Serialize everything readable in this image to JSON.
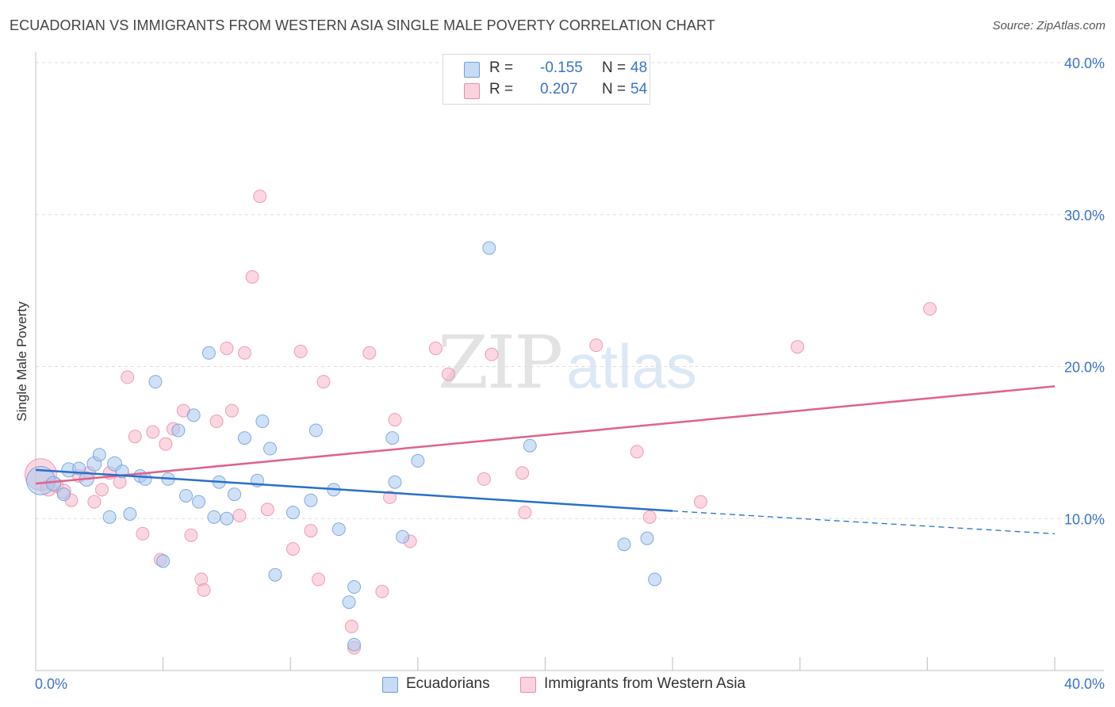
{
  "header": {
    "title": "ECUADORIAN VS IMMIGRANTS FROM WESTERN ASIA SINGLE MALE POVERTY CORRELATION CHART",
    "source": "Source: ZipAtlas.com"
  },
  "watermark": {
    "zip": "ZIP",
    "atlas": "atlas"
  },
  "legend": {
    "rows": [
      {
        "r_label": "R =",
        "r_value": "-0.155",
        "n_label": "N =",
        "n_value": "48",
        "color": "#a9c8f0"
      },
      {
        "r_label": "R =",
        "r_value": "0.207",
        "n_label": "N =",
        "n_value": "54",
        "color": "#f7b6c8"
      }
    ]
  },
  "bottom_legend": {
    "series_a": "Ecuadorians",
    "series_b": "Immigrants from Western Asia"
  },
  "colors": {
    "blue_fill": "#a9c8f0",
    "blue_stroke": "#6e9fd9",
    "blue_line": "#2a6fcc",
    "pink_fill": "#f7b6c8",
    "pink_stroke": "#e98aa6",
    "pink_line": "#e0628a",
    "tick_text": "#3b73c7",
    "grid": "#dddddd"
  },
  "chart_data": {
    "type": "scatter",
    "title": "ECUADORIAN VS IMMIGRANTS FROM WESTERN ASIA SINGLE MALE POVERTY CORRELATION CHART",
    "ylabel": "Single Male Poverty",
    "xlabel": "",
    "xlim": [
      0,
      40
    ],
    "ylim": [
      0,
      40
    ],
    "x_tick_labels": [
      "0.0%",
      "40.0%"
    ],
    "y_ticks": [
      10,
      20,
      30,
      40
    ],
    "y_tick_labels": [
      "10.0%",
      "20.0%",
      "30.0%",
      "40.0%"
    ],
    "grid": true,
    "series": [
      {
        "name": "Ecuadorians",
        "color": "#a9c8f0",
        "r": -0.155,
        "n": 48,
        "trend": {
          "x_start": 0,
          "y_start": 13.2,
          "x_solid_end": 25.0,
          "y_solid_end": 10.5,
          "x_end": 40,
          "y_end": 9.0
        },
        "points": [
          [
            0.2,
            12.5,
            18
          ],
          [
            0.7,
            12.3,
            9
          ],
          [
            1.1,
            11.6,
            8
          ],
          [
            1.3,
            13.2,
            9
          ],
          [
            1.7,
            13.3,
            8
          ],
          [
            2.0,
            12.6,
            9
          ],
          [
            2.3,
            13.6,
            9
          ],
          [
            2.5,
            14.2,
            8
          ],
          [
            2.9,
            10.1,
            8
          ],
          [
            3.1,
            13.6,
            9
          ],
          [
            3.4,
            13.1,
            8
          ],
          [
            3.7,
            10.3,
            8
          ],
          [
            4.1,
            12.8,
            8
          ],
          [
            4.3,
            12.6,
            8
          ],
          [
            4.7,
            19.0,
            8
          ],
          [
            5.0,
            7.2,
            8
          ],
          [
            5.2,
            12.6,
            8
          ],
          [
            5.6,
            15.8,
            8
          ],
          [
            5.9,
            11.5,
            8
          ],
          [
            6.2,
            16.8,
            8
          ],
          [
            6.4,
            11.1,
            8
          ],
          [
            6.8,
            20.9,
            8
          ],
          [
            7.0,
            10.1,
            8
          ],
          [
            7.2,
            12.4,
            8
          ],
          [
            7.5,
            10.0,
            8
          ],
          [
            7.8,
            11.6,
            8
          ],
          [
            8.2,
            15.3,
            8
          ],
          [
            8.7,
            12.5,
            8
          ],
          [
            8.9,
            16.4,
            8
          ],
          [
            9.2,
            14.6,
            8
          ],
          [
            9.4,
            6.3,
            8
          ],
          [
            10.1,
            10.4,
            8
          ],
          [
            10.8,
            11.2,
            8
          ],
          [
            11.0,
            15.8,
            8
          ],
          [
            11.7,
            11.9,
            8
          ],
          [
            11.9,
            9.3,
            8
          ],
          [
            12.3,
            4.5,
            8
          ],
          [
            12.5,
            5.5,
            8
          ],
          [
            12.5,
            1.7,
            8
          ],
          [
            14.0,
            15.3,
            8
          ],
          [
            14.1,
            12.4,
            8
          ],
          [
            14.4,
            8.8,
            8
          ],
          [
            15.0,
            13.8,
            8
          ],
          [
            17.8,
            27.8,
            8
          ],
          [
            19.4,
            14.8,
            8
          ],
          [
            23.1,
            8.3,
            8
          ],
          [
            24.0,
            8.7,
            8
          ],
          [
            24.3,
            6.0,
            8
          ]
        ]
      },
      {
        "name": "Immigrants from Western Asia",
        "color": "#f7b6c8",
        "r": 0.207,
        "n": 54,
        "trend": {
          "x_start": 0,
          "y_start": 12.3,
          "x_end": 40,
          "y_end": 18.7
        },
        "points": [
          [
            0.2,
            12.9,
            20
          ],
          [
            0.5,
            12.0,
            10
          ],
          [
            0.8,
            12.2,
            9
          ],
          [
            1.1,
            11.8,
            9
          ],
          [
            1.4,
            11.2,
            8
          ],
          [
            1.7,
            12.8,
            8
          ],
          [
            2.1,
            13.0,
            8
          ],
          [
            2.3,
            11.1,
            8
          ],
          [
            2.6,
            11.9,
            8
          ],
          [
            2.9,
            13.0,
            8
          ],
          [
            3.3,
            12.4,
            8
          ],
          [
            3.6,
            19.3,
            8
          ],
          [
            3.9,
            15.4,
            8
          ],
          [
            4.2,
            9.0,
            8
          ],
          [
            4.6,
            15.7,
            8
          ],
          [
            4.9,
            7.3,
            8
          ],
          [
            5.1,
            14.9,
            8
          ],
          [
            5.4,
            15.9,
            8
          ],
          [
            5.8,
            17.1,
            8
          ],
          [
            6.1,
            8.9,
            8
          ],
          [
            6.5,
            6.0,
            8
          ],
          [
            6.6,
            5.3,
            8
          ],
          [
            7.1,
            16.4,
            8
          ],
          [
            7.5,
            21.2,
            8
          ],
          [
            7.7,
            17.1,
            8
          ],
          [
            8.0,
            10.2,
            8
          ],
          [
            8.2,
            20.9,
            8
          ],
          [
            8.5,
            25.9,
            8
          ],
          [
            8.8,
            31.2,
            8
          ],
          [
            9.1,
            10.6,
            8
          ],
          [
            10.1,
            8.0,
            8
          ],
          [
            10.4,
            21.0,
            8
          ],
          [
            10.8,
            9.2,
            8
          ],
          [
            11.1,
            6.0,
            8
          ],
          [
            11.3,
            19.0,
            8
          ],
          [
            12.4,
            2.9,
            8
          ],
          [
            12.5,
            1.5,
            8
          ],
          [
            13.1,
            20.9,
            8
          ],
          [
            13.6,
            5.2,
            8
          ],
          [
            13.9,
            11.4,
            8
          ],
          [
            14.1,
            16.5,
            8
          ],
          [
            14.7,
            8.5,
            8
          ],
          [
            15.7,
            21.2,
            8
          ],
          [
            16.2,
            19.5,
            8
          ],
          [
            17.6,
            12.6,
            8
          ],
          [
            17.9,
            20.8,
            8
          ],
          [
            19.1,
            13.0,
            8
          ],
          [
            19.2,
            10.4,
            8
          ],
          [
            22.0,
            21.4,
            8
          ],
          [
            23.6,
            14.4,
            8
          ],
          [
            24.1,
            10.1,
            8
          ],
          [
            26.1,
            11.1,
            8
          ],
          [
            29.9,
            21.3,
            8
          ],
          [
            35.1,
            23.8,
            8
          ]
        ]
      }
    ]
  }
}
